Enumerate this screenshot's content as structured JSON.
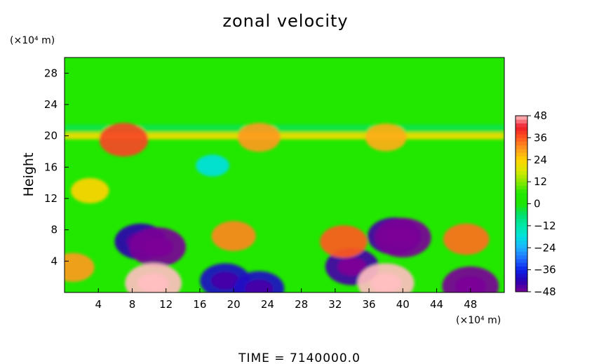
{
  "chart_data": {
    "type": "heatmap",
    "title": "zonal velocity",
    "ylabel": "Height",
    "xunit": "(×10⁴ m)",
    "yunit": "(×10⁴ m)",
    "xlim": [
      0,
      52
    ],
    "ylim": [
      0,
      30
    ],
    "xticks": [
      4,
      8,
      12,
      16,
      20,
      24,
      28,
      32,
      36,
      40,
      44,
      48
    ],
    "yticks": [
      4,
      8,
      12,
      16,
      20,
      24,
      28
    ],
    "colorbar": {
      "min": -48,
      "max": 48,
      "ticks": [
        48,
        36,
        24,
        12,
        0,
        -12,
        -24,
        -36,
        -48
      ]
    },
    "background_value": 6,
    "features": [
      {
        "label": "jet layer",
        "x": [
          0,
          52
        ],
        "y": 21,
        "value": -4
      },
      {
        "label": "jet layer",
        "x": [
          0,
          52
        ],
        "y": 20,
        "value": 22
      },
      {
        "label": "max",
        "x": 7,
        "y": 19.5,
        "value": 38
      },
      {
        "label": "max",
        "x": 23,
        "y": 19.8,
        "value": 30
      },
      {
        "label": "max",
        "x": 38,
        "y": 19.8,
        "value": 28
      },
      {
        "label": "min",
        "x": 9,
        "y": 6.5,
        "value": -42
      },
      {
        "label": "min",
        "x": 11,
        "y": 5.8,
        "value": -48
      },
      {
        "label": "min",
        "x": 39,
        "y": 7.2,
        "value": -44
      },
      {
        "label": "min",
        "x": 40,
        "y": 7,
        "value": -48
      },
      {
        "label": "min",
        "x": 34,
        "y": 3.3,
        "value": -44
      },
      {
        "label": "min",
        "x": 48,
        "y": 0.8,
        "value": -48
      },
      {
        "label": "max",
        "x": 20,
        "y": 7.2,
        "value": 32
      },
      {
        "label": "max",
        "x": 33,
        "y": 6.5,
        "value": 36
      },
      {
        "label": "max",
        "x": 47.5,
        "y": 6.8,
        "value": 34
      },
      {
        "label": "max",
        "x": 10.5,
        "y": 1.2,
        "value": 48
      },
      {
        "label": "max",
        "x": 38,
        "y": 1.2,
        "value": 48
      },
      {
        "label": "min",
        "x": 19,
        "y": 1.5,
        "value": -40
      },
      {
        "label": "min",
        "x": 23,
        "y": 0.5,
        "value": -40
      },
      {
        "label": "max",
        "x": 3,
        "y": 13,
        "value": 24
      },
      {
        "label": "max",
        "x": 1,
        "y": 3.2,
        "value": 30
      },
      {
        "label": "min",
        "x": 17.5,
        "y": 16.2,
        "value": -18
      }
    ]
  },
  "time_label": "TIME  =  7140000.0"
}
